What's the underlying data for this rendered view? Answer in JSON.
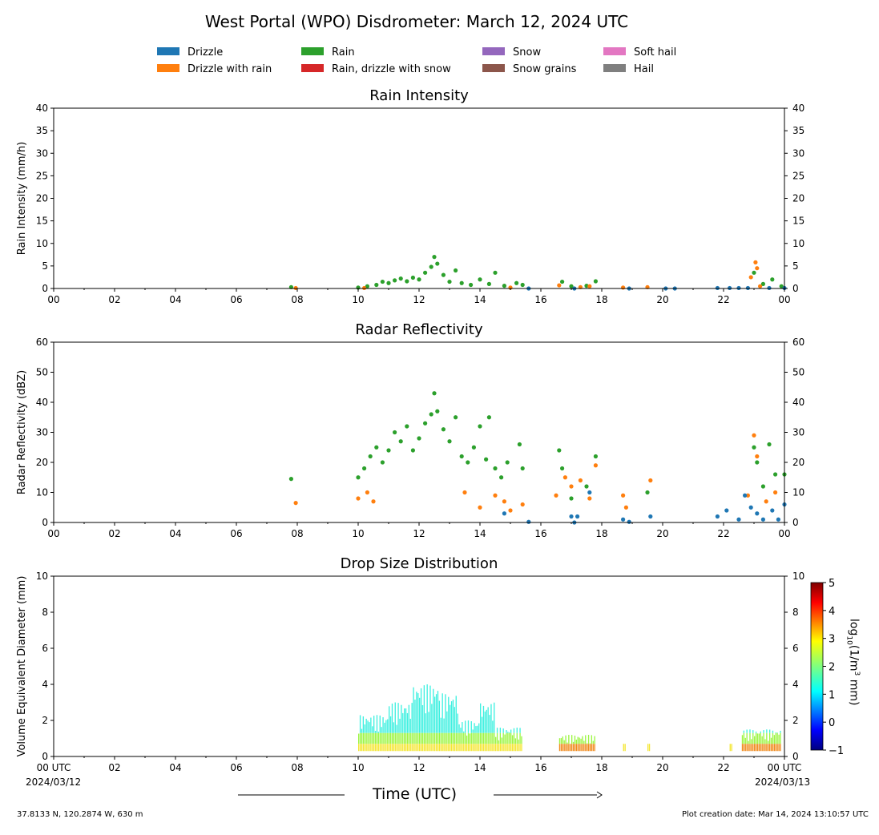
{
  "title": "West Portal (WPO) Disdrometer: March 12, 2024 UTC",
  "legend": [
    {
      "label": "Drizzle",
      "color": "#1f77b4"
    },
    {
      "label": "Drizzle with rain",
      "color": "#ff7f0e"
    },
    {
      "label": "Rain",
      "color": "#2ca02c"
    },
    {
      "label": "Rain, drizzle with snow",
      "color": "#d62728"
    },
    {
      "label": "Snow",
      "color": "#9467bd"
    },
    {
      "label": "Snow grains",
      "color": "#8c564b"
    },
    {
      "label": "Soft hail",
      "color": "#e377c2"
    },
    {
      "label": "Hail",
      "color": "#7f7f7f"
    }
  ],
  "x_axis": {
    "label": "Time (UTC)",
    "ticks": [
      "00",
      "02",
      "04",
      "06",
      "08",
      "10",
      "12",
      "14",
      "16",
      "18",
      "20",
      "22",
      "00"
    ],
    "bottom_ticks": [
      "00 UTC",
      "02",
      "04",
      "06",
      "08",
      "10",
      "12",
      "14",
      "16",
      "18",
      "20",
      "22",
      "00 UTC"
    ],
    "start_date": "2024/03/12",
    "end_date": "2024/03/13"
  },
  "footer": {
    "location": "37.8133 N, 120.2874 W, 630 m",
    "creation": "Plot creation date: Mar 14, 2024 13:10:57 UTC"
  },
  "chart_data": [
    {
      "type": "scatter",
      "title": "Rain Intensity",
      "ylabel": "Rain Intensity (mm/h)",
      "xlim": [
        0,
        24
      ],
      "ylim": [
        0,
        40
      ],
      "yticks": [
        "0",
        "5",
        "10",
        "15",
        "20",
        "25",
        "30",
        "35",
        "40"
      ],
      "series": [
        {
          "name": "Rain",
          "color": "#2ca02c",
          "points": [
            [
              7.8,
              0.3
            ],
            [
              10.0,
              0.2
            ],
            [
              10.3,
              0.5
            ],
            [
              10.6,
              0.8
            ],
            [
              10.8,
              1.5
            ],
            [
              11.0,
              1.2
            ],
            [
              11.2,
              1.8
            ],
            [
              11.4,
              2.2
            ],
            [
              11.6,
              1.6
            ],
            [
              11.8,
              2.4
            ],
            [
              12.0,
              2.0
            ],
            [
              12.2,
              3.5
            ],
            [
              12.4,
              4.8
            ],
            [
              12.5,
              7.0
            ],
            [
              12.6,
              5.5
            ],
            [
              12.8,
              3.0
            ],
            [
              13.0,
              1.5
            ],
            [
              13.2,
              4.0
            ],
            [
              13.4,
              1.2
            ],
            [
              13.7,
              0.8
            ],
            [
              14.0,
              2.0
            ],
            [
              14.3,
              1.0
            ],
            [
              14.5,
              3.5
            ],
            [
              14.8,
              0.6
            ],
            [
              15.2,
              1.2
            ],
            [
              15.4,
              0.8
            ],
            [
              16.7,
              1.5
            ],
            [
              17.0,
              0.5
            ],
            [
              17.5,
              0.6
            ],
            [
              17.8,
              1.6
            ],
            [
              23.0,
              3.5
            ],
            [
              23.3,
              1.0
            ],
            [
              23.6,
              2.0
            ],
            [
              23.9,
              0.5
            ]
          ]
        },
        {
          "name": "Drizzle with rain",
          "color": "#ff7f0e",
          "points": [
            [
              7.95,
              0.1
            ],
            [
              10.2,
              0.1
            ],
            [
              15.0,
              0.2
            ],
            [
              16.6,
              0.7
            ],
            [
              17.3,
              0.3
            ],
            [
              17.6,
              0.5
            ],
            [
              18.7,
              0.2
            ],
            [
              19.5,
              0.3
            ],
            [
              22.9,
              2.5
            ],
            [
              23.05,
              5.8
            ],
            [
              23.1,
              4.5
            ],
            [
              23.2,
              0.5
            ]
          ]
        },
        {
          "name": "Drizzle",
          "color": "#1f77b4",
          "points": [
            [
              15.6,
              0.0
            ],
            [
              17.1,
              0.0
            ],
            [
              18.9,
              0.0
            ],
            [
              20.1,
              0.0
            ],
            [
              20.4,
              0.0
            ],
            [
              21.8,
              0.1
            ],
            [
              22.2,
              0.1
            ],
            [
              22.5,
              0.1
            ],
            [
              22.8,
              0.1
            ],
            [
              23.5,
              0.1
            ],
            [
              24.0,
              0.1
            ]
          ]
        }
      ]
    },
    {
      "type": "scatter",
      "title": "Radar Reflectivity",
      "ylabel": "Radar Reflectivity (dBZ)",
      "xlim": [
        0,
        24
      ],
      "ylim": [
        0,
        60
      ],
      "yticks": [
        "0",
        "10",
        "20",
        "30",
        "40",
        "50",
        "60"
      ],
      "series": [
        {
          "name": "Rain",
          "color": "#2ca02c",
          "points": [
            [
              7.8,
              14.5
            ],
            [
              10.0,
              15
            ],
            [
              10.2,
              18
            ],
            [
              10.4,
              22
            ],
            [
              10.6,
              25
            ],
            [
              10.8,
              20
            ],
            [
              11.0,
              24
            ],
            [
              11.2,
              30
            ],
            [
              11.4,
              27
            ],
            [
              11.6,
              32
            ],
            [
              11.8,
              24
            ],
            [
              12.0,
              28
            ],
            [
              12.2,
              33
            ],
            [
              12.4,
              36
            ],
            [
              12.5,
              43
            ],
            [
              12.6,
              37
            ],
            [
              12.8,
              31
            ],
            [
              13.0,
              27
            ],
            [
              13.2,
              35
            ],
            [
              13.4,
              22
            ],
            [
              13.6,
              20
            ],
            [
              13.8,
              25
            ],
            [
              14.0,
              32
            ],
            [
              14.2,
              21
            ],
            [
              14.3,
              35
            ],
            [
              14.5,
              18
            ],
            [
              14.7,
              15
            ],
            [
              14.9,
              20
            ],
            [
              15.3,
              26
            ],
            [
              15.4,
              18
            ],
            [
              16.6,
              24
            ],
            [
              16.7,
              18
            ],
            [
              17.0,
              8
            ],
            [
              17.5,
              12
            ],
            [
              17.8,
              22
            ],
            [
              19.5,
              10
            ],
            [
              23.0,
              25
            ],
            [
              23.1,
              20
            ],
            [
              23.3,
              12
            ],
            [
              23.5,
              26
            ],
            [
              23.7,
              16
            ],
            [
              24.0,
              16
            ]
          ]
        },
        {
          "name": "Drizzle with rain",
          "color": "#ff7f0e",
          "points": [
            [
              7.95,
              6.5
            ],
            [
              10.0,
              8
            ],
            [
              10.3,
              10
            ],
            [
              10.5,
              7
            ],
            [
              13.5,
              10
            ],
            [
              14.0,
              5
            ],
            [
              14.5,
              9
            ],
            [
              14.8,
              7
            ],
            [
              15.0,
              4
            ],
            [
              15.4,
              6
            ],
            [
              16.5,
              9
            ],
            [
              16.8,
              15
            ],
            [
              17.0,
              12
            ],
            [
              17.3,
              14
            ],
            [
              17.6,
              8
            ],
            [
              17.8,
              19
            ],
            [
              18.7,
              9
            ],
            [
              18.8,
              5
            ],
            [
              19.6,
              14
            ],
            [
              22.8,
              9
            ],
            [
              23.0,
              29
            ],
            [
              23.1,
              22
            ],
            [
              23.4,
              7
            ],
            [
              23.7,
              10
            ]
          ]
        },
        {
          "name": "Drizzle",
          "color": "#1f77b4",
          "points": [
            [
              14.8,
              3
            ],
            [
              15.6,
              0.2
            ],
            [
              17.0,
              2
            ],
            [
              17.1,
              0
            ],
            [
              17.2,
              2
            ],
            [
              17.6,
              10
            ],
            [
              18.7,
              1
            ],
            [
              18.9,
              0.2
            ],
            [
              19.6,
              2
            ],
            [
              21.8,
              2
            ],
            [
              22.1,
              4
            ],
            [
              22.5,
              1
            ],
            [
              22.7,
              9
            ],
            [
              22.9,
              5
            ],
            [
              23.1,
              3
            ],
            [
              23.3,
              1
            ],
            [
              23.6,
              4
            ],
            [
              23.8,
              1
            ],
            [
              24.0,
              6
            ]
          ]
        }
      ]
    },
    {
      "type": "heatmap",
      "title": "Drop Size Distribution",
      "ylabel": "Volume Equivalent Diameter (mm)",
      "xlim": [
        0,
        24
      ],
      "ylim": [
        0,
        10
      ],
      "yticks": [
        "0",
        "2",
        "4",
        "6",
        "8",
        "10"
      ],
      "colorbar": {
        "label_main": "log",
        "label_sub": "10",
        "label_rest": "(1/m",
        "label_sup": "3",
        "label_end": " mm)",
        "range": [
          -1,
          5
        ],
        "ticks": [
          "−1",
          "0",
          "1",
          "2",
          "3",
          "4",
          "5"
        ]
      },
      "blocks": [
        {
          "x0": 10.0,
          "x1": 11.0,
          "dmax": 2.3
        },
        {
          "x0": 11.0,
          "x1": 11.8,
          "dmax": 3.0
        },
        {
          "x0": 11.8,
          "x1": 12.7,
          "dmax": 4.0
        },
        {
          "x0": 12.7,
          "x1": 13.3,
          "dmax": 3.5
        },
        {
          "x0": 13.3,
          "x1": 14.0,
          "dmax": 2.0
        },
        {
          "x0": 14.0,
          "x1": 14.5,
          "dmax": 3.0
        },
        {
          "x0": 14.5,
          "x1": 15.4,
          "dmax": 1.6
        },
        {
          "x0": 16.6,
          "x1": 17.0,
          "dmax": 1.2
        },
        {
          "x0": 17.0,
          "x1": 17.8,
          "dmax": 1.2
        },
        {
          "x0": 18.7,
          "x1": 18.8,
          "dmax": 0.6
        },
        {
          "x0": 19.5,
          "x1": 19.6,
          "dmax": 0.7
        },
        {
          "x0": 22.2,
          "x1": 22.3,
          "dmax": 0.5
        },
        {
          "x0": 22.6,
          "x1": 23.9,
          "dmax": 1.5
        }
      ]
    }
  ]
}
